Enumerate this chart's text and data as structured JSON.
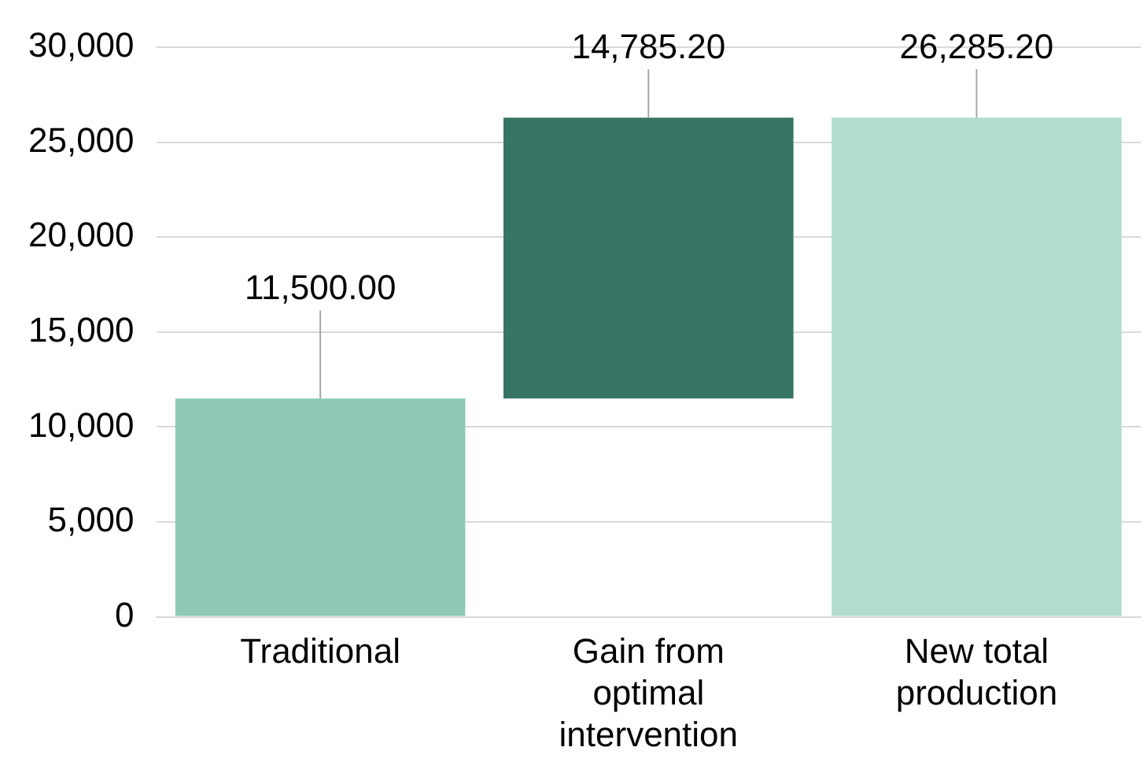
{
  "chart_data": {
    "type": "bar",
    "categories": [
      "Traditional",
      "Gain from optimal intervention",
      "New total production"
    ],
    "values": [
      11500,
      14785.2,
      26285.2
    ],
    "base": [
      0,
      11500,
      0
    ],
    "colors": [
      "#8ecab6",
      "#367563",
      "#b2dccf"
    ],
    "value_labels": [
      "11,500.00",
      "14,785.20",
      "26,285.20"
    ],
    "ylim": [
      0,
      30000
    ],
    "yticks": [
      {
        "value": 0,
        "label": "0"
      },
      {
        "value": 5000,
        "label": "5,000"
      },
      {
        "value": 10000,
        "label": "10,000"
      },
      {
        "value": 15000,
        "label": "15,000"
      },
      {
        "value": 20000,
        "label": "20,000"
      },
      {
        "value": 25000,
        "label": "25,000"
      },
      {
        "value": 30000,
        "label": "30,000"
      }
    ],
    "grid": "y"
  }
}
